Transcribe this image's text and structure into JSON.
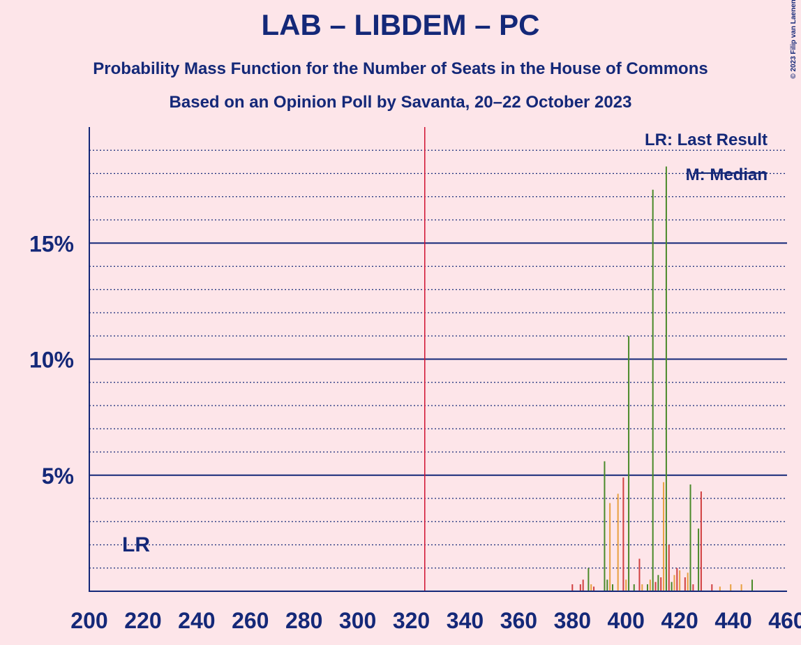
{
  "chart_data": {
    "type": "bar",
    "title": "LAB – LIBDEM – PC",
    "subtitle": "Probability Mass Function for the Number of Seats in the House of Commons",
    "subtitle2": "Based on an Opinion Poll by Savanta, 20–22 October 2023",
    "copyright": "© 2023 Filip van Laenen",
    "legend_lr": "LR: Last Result",
    "legend_median": "M: Median",
    "last_result": 325,
    "last_result_label": "LR",
    "x": [
      380,
      383,
      384,
      386,
      387,
      388,
      392,
      393,
      394,
      395,
      397,
      399,
      400,
      401,
      403,
      405,
      406,
      408,
      409,
      410,
      411,
      412,
      413,
      414,
      415,
      416,
      417,
      418,
      419,
      420,
      422,
      423,
      424,
      425,
      427,
      428,
      432,
      435,
      439,
      443,
      447
    ],
    "values": [
      0.3,
      0.3,
      0.5,
      1.0,
      0.3,
      0.2,
      5.6,
      0.5,
      3.8,
      0.3,
      4.2,
      4.9,
      0.5,
      11.0,
      0.3,
      1.4,
      0.3,
      0.3,
      0.5,
      17.3,
      0.4,
      0.7,
      0.6,
      4.7,
      18.3,
      2.0,
      0.4,
      0.7,
      1.0,
      0.9,
      0.6,
      0.8,
      4.6,
      0.3,
      2.7,
      4.3,
      0.3,
      0.2,
      0.3,
      0.3,
      0.5
    ],
    "colors": [
      "#d04040",
      "#d04040",
      "#d04040",
      "#4a8a2a",
      "#e8a040",
      "#d04040",
      "#4a8a2a",
      "#4a8a2a",
      "#e8a040",
      "#4a8a2a",
      "#e8a040",
      "#d04040",
      "#e8a040",
      "#4a8a2a",
      "#4a8a2a",
      "#d04040",
      "#e8a040",
      "#4a8a2a",
      "#e8a040",
      "#4a8a2a",
      "#d04040",
      "#4a8a2a",
      "#d04040",
      "#e8a040",
      "#4a8a2a",
      "#d04040",
      "#4a8a2a",
      "#e8a040",
      "#d04040",
      "#e8a040",
      "#d04040",
      "#e8a040",
      "#4a8a2a",
      "#d04040",
      "#4a8a2a",
      "#d04040",
      "#d04040",
      "#e8a040",
      "#e8a040",
      "#e8a040",
      "#4a8a2a"
    ],
    "xlim": [
      200,
      460
    ],
    "xticks": [
      200,
      220,
      240,
      260,
      280,
      300,
      320,
      340,
      360,
      380,
      400,
      420,
      440,
      460
    ],
    "ylim": [
      0,
      20
    ],
    "yticks": [
      {
        "value": 5,
        "label": "5%"
      },
      {
        "value": 10,
        "label": "10%"
      },
      {
        "value": 15,
        "label": "15%"
      }
    ],
    "grid": true
  }
}
